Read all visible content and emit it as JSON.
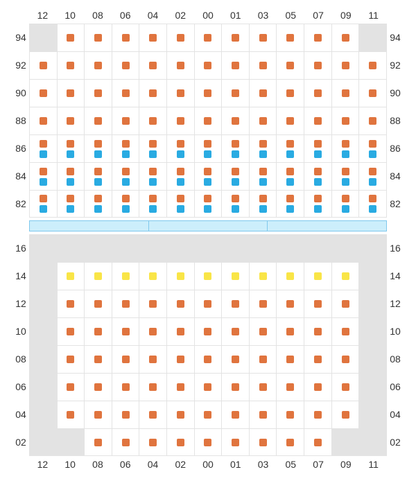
{
  "colors": {
    "orange": "#e0743e",
    "blue": "#29abe2",
    "yellow": "#f9e547",
    "gray": "#e3e3e3",
    "divider_fill": "#cceefb",
    "divider_border": "#7fc8ed",
    "grid_line": "#e3e3e3",
    "text": "#333333",
    "background": "#ffffff"
  },
  "font_size_label": 14,
  "marker_size": 11,
  "col_labels": [
    "12",
    "10",
    "08",
    "06",
    "04",
    "02",
    "00",
    "01",
    "03",
    "05",
    "07",
    "09",
    "11"
  ],
  "top": {
    "row_labels": [
      "94",
      "92",
      "90",
      "88",
      "86",
      "84",
      "82"
    ],
    "rows": [
      [
        [
          "g"
        ],
        [
          "o"
        ],
        [
          "o"
        ],
        [
          "o"
        ],
        [
          "o"
        ],
        [
          "o"
        ],
        [
          "o"
        ],
        [
          "o"
        ],
        [
          "o"
        ],
        [
          "o"
        ],
        [
          "o"
        ],
        [
          "o"
        ],
        [
          "g"
        ]
      ],
      [
        [
          "o"
        ],
        [
          "o"
        ],
        [
          "o"
        ],
        [
          "o"
        ],
        [
          "o"
        ],
        [
          "o"
        ],
        [
          "o"
        ],
        [
          "o"
        ],
        [
          "o"
        ],
        [
          "o"
        ],
        [
          "o"
        ],
        [
          "o"
        ],
        [
          "o"
        ]
      ],
      [
        [
          "o"
        ],
        [
          "o"
        ],
        [
          "o"
        ],
        [
          "o"
        ],
        [
          "o"
        ],
        [
          "o"
        ],
        [
          "o"
        ],
        [
          "o"
        ],
        [
          "o"
        ],
        [
          "o"
        ],
        [
          "o"
        ],
        [
          "o"
        ],
        [
          "o"
        ]
      ],
      [
        [
          "o"
        ],
        [
          "o"
        ],
        [
          "o"
        ],
        [
          "o"
        ],
        [
          "o"
        ],
        [
          "o"
        ],
        [
          "o"
        ],
        [
          "o"
        ],
        [
          "o"
        ],
        [
          "o"
        ],
        [
          "o"
        ],
        [
          "o"
        ],
        [
          "o"
        ]
      ],
      [
        [
          "o",
          "b"
        ],
        [
          "o",
          "b"
        ],
        [
          "o",
          "b"
        ],
        [
          "o",
          "b"
        ],
        [
          "o",
          "b"
        ],
        [
          "o",
          "b"
        ],
        [
          "o",
          "b"
        ],
        [
          "o",
          "b"
        ],
        [
          "o",
          "b"
        ],
        [
          "o",
          "b"
        ],
        [
          "o",
          "b"
        ],
        [
          "o",
          "b"
        ],
        [
          "o",
          "b"
        ]
      ],
      [
        [
          "o",
          "b"
        ],
        [
          "o",
          "b"
        ],
        [
          "o",
          "b"
        ],
        [
          "o",
          "b"
        ],
        [
          "o",
          "b"
        ],
        [
          "o",
          "b"
        ],
        [
          "o",
          "b"
        ],
        [
          "o",
          "b"
        ],
        [
          "o",
          "b"
        ],
        [
          "o",
          "b"
        ],
        [
          "o",
          "b"
        ],
        [
          "o",
          "b"
        ],
        [
          "o",
          "b"
        ]
      ],
      [
        [
          "o",
          "b"
        ],
        [
          "o",
          "b"
        ],
        [
          "o",
          "b"
        ],
        [
          "o",
          "b"
        ],
        [
          "o",
          "b"
        ],
        [
          "o",
          "b"
        ],
        [
          "o",
          "b"
        ],
        [
          "o",
          "b"
        ],
        [
          "o",
          "b"
        ],
        [
          "o",
          "b"
        ],
        [
          "o",
          "b"
        ],
        [
          "o",
          "b"
        ],
        [
          "o",
          "b"
        ]
      ]
    ]
  },
  "divider_segments": 3,
  "bottom": {
    "row_labels": [
      "16",
      "14",
      "12",
      "10",
      "08",
      "06",
      "04",
      "02"
    ],
    "rows": [
      [
        [
          "g"
        ],
        [
          "g"
        ],
        [
          "g"
        ],
        [
          "g"
        ],
        [
          "g"
        ],
        [
          "g"
        ],
        [
          "g"
        ],
        [
          "g"
        ],
        [
          "g"
        ],
        [
          "g"
        ],
        [
          "g"
        ],
        [
          "g"
        ],
        [
          "g"
        ]
      ],
      [
        [
          "g"
        ],
        [
          "y"
        ],
        [
          "y"
        ],
        [
          "y"
        ],
        [
          "y"
        ],
        [
          "y"
        ],
        [
          "y"
        ],
        [
          "y"
        ],
        [
          "y"
        ],
        [
          "y"
        ],
        [
          "y"
        ],
        [
          "y"
        ],
        [
          "g"
        ]
      ],
      [
        [
          "g"
        ],
        [
          "o"
        ],
        [
          "o"
        ],
        [
          "o"
        ],
        [
          "o"
        ],
        [
          "o"
        ],
        [
          "o"
        ],
        [
          "o"
        ],
        [
          "o"
        ],
        [
          "o"
        ],
        [
          "o"
        ],
        [
          "o"
        ],
        [
          "g"
        ]
      ],
      [
        [
          "g"
        ],
        [
          "o"
        ],
        [
          "o"
        ],
        [
          "o"
        ],
        [
          "o"
        ],
        [
          "o"
        ],
        [
          "o"
        ],
        [
          "o"
        ],
        [
          "o"
        ],
        [
          "o"
        ],
        [
          "o"
        ],
        [
          "o"
        ],
        [
          "g"
        ]
      ],
      [
        [
          "g"
        ],
        [
          "o"
        ],
        [
          "o"
        ],
        [
          "o"
        ],
        [
          "o"
        ],
        [
          "o"
        ],
        [
          "o"
        ],
        [
          "o"
        ],
        [
          "o"
        ],
        [
          "o"
        ],
        [
          "o"
        ],
        [
          "o"
        ],
        [
          "g"
        ]
      ],
      [
        [
          "g"
        ],
        [
          "o"
        ],
        [
          "o"
        ],
        [
          "o"
        ],
        [
          "o"
        ],
        [
          "o"
        ],
        [
          "o"
        ],
        [
          "o"
        ],
        [
          "o"
        ],
        [
          "o"
        ],
        [
          "o"
        ],
        [
          "o"
        ],
        [
          "g"
        ]
      ],
      [
        [
          "g"
        ],
        [
          "o"
        ],
        [
          "o"
        ],
        [
          "o"
        ],
        [
          "o"
        ],
        [
          "o"
        ],
        [
          "o"
        ],
        [
          "o"
        ],
        [
          "o"
        ],
        [
          "o"
        ],
        [
          "o"
        ],
        [
          "o"
        ],
        [
          "g"
        ]
      ],
      [
        [
          "g"
        ],
        [
          "g"
        ],
        [
          "o"
        ],
        [
          "o"
        ],
        [
          "o"
        ],
        [
          "o"
        ],
        [
          "o"
        ],
        [
          "o"
        ],
        [
          "o"
        ],
        [
          "o"
        ],
        [
          "o"
        ],
        [
          "g"
        ],
        [
          "g"
        ]
      ]
    ]
  }
}
